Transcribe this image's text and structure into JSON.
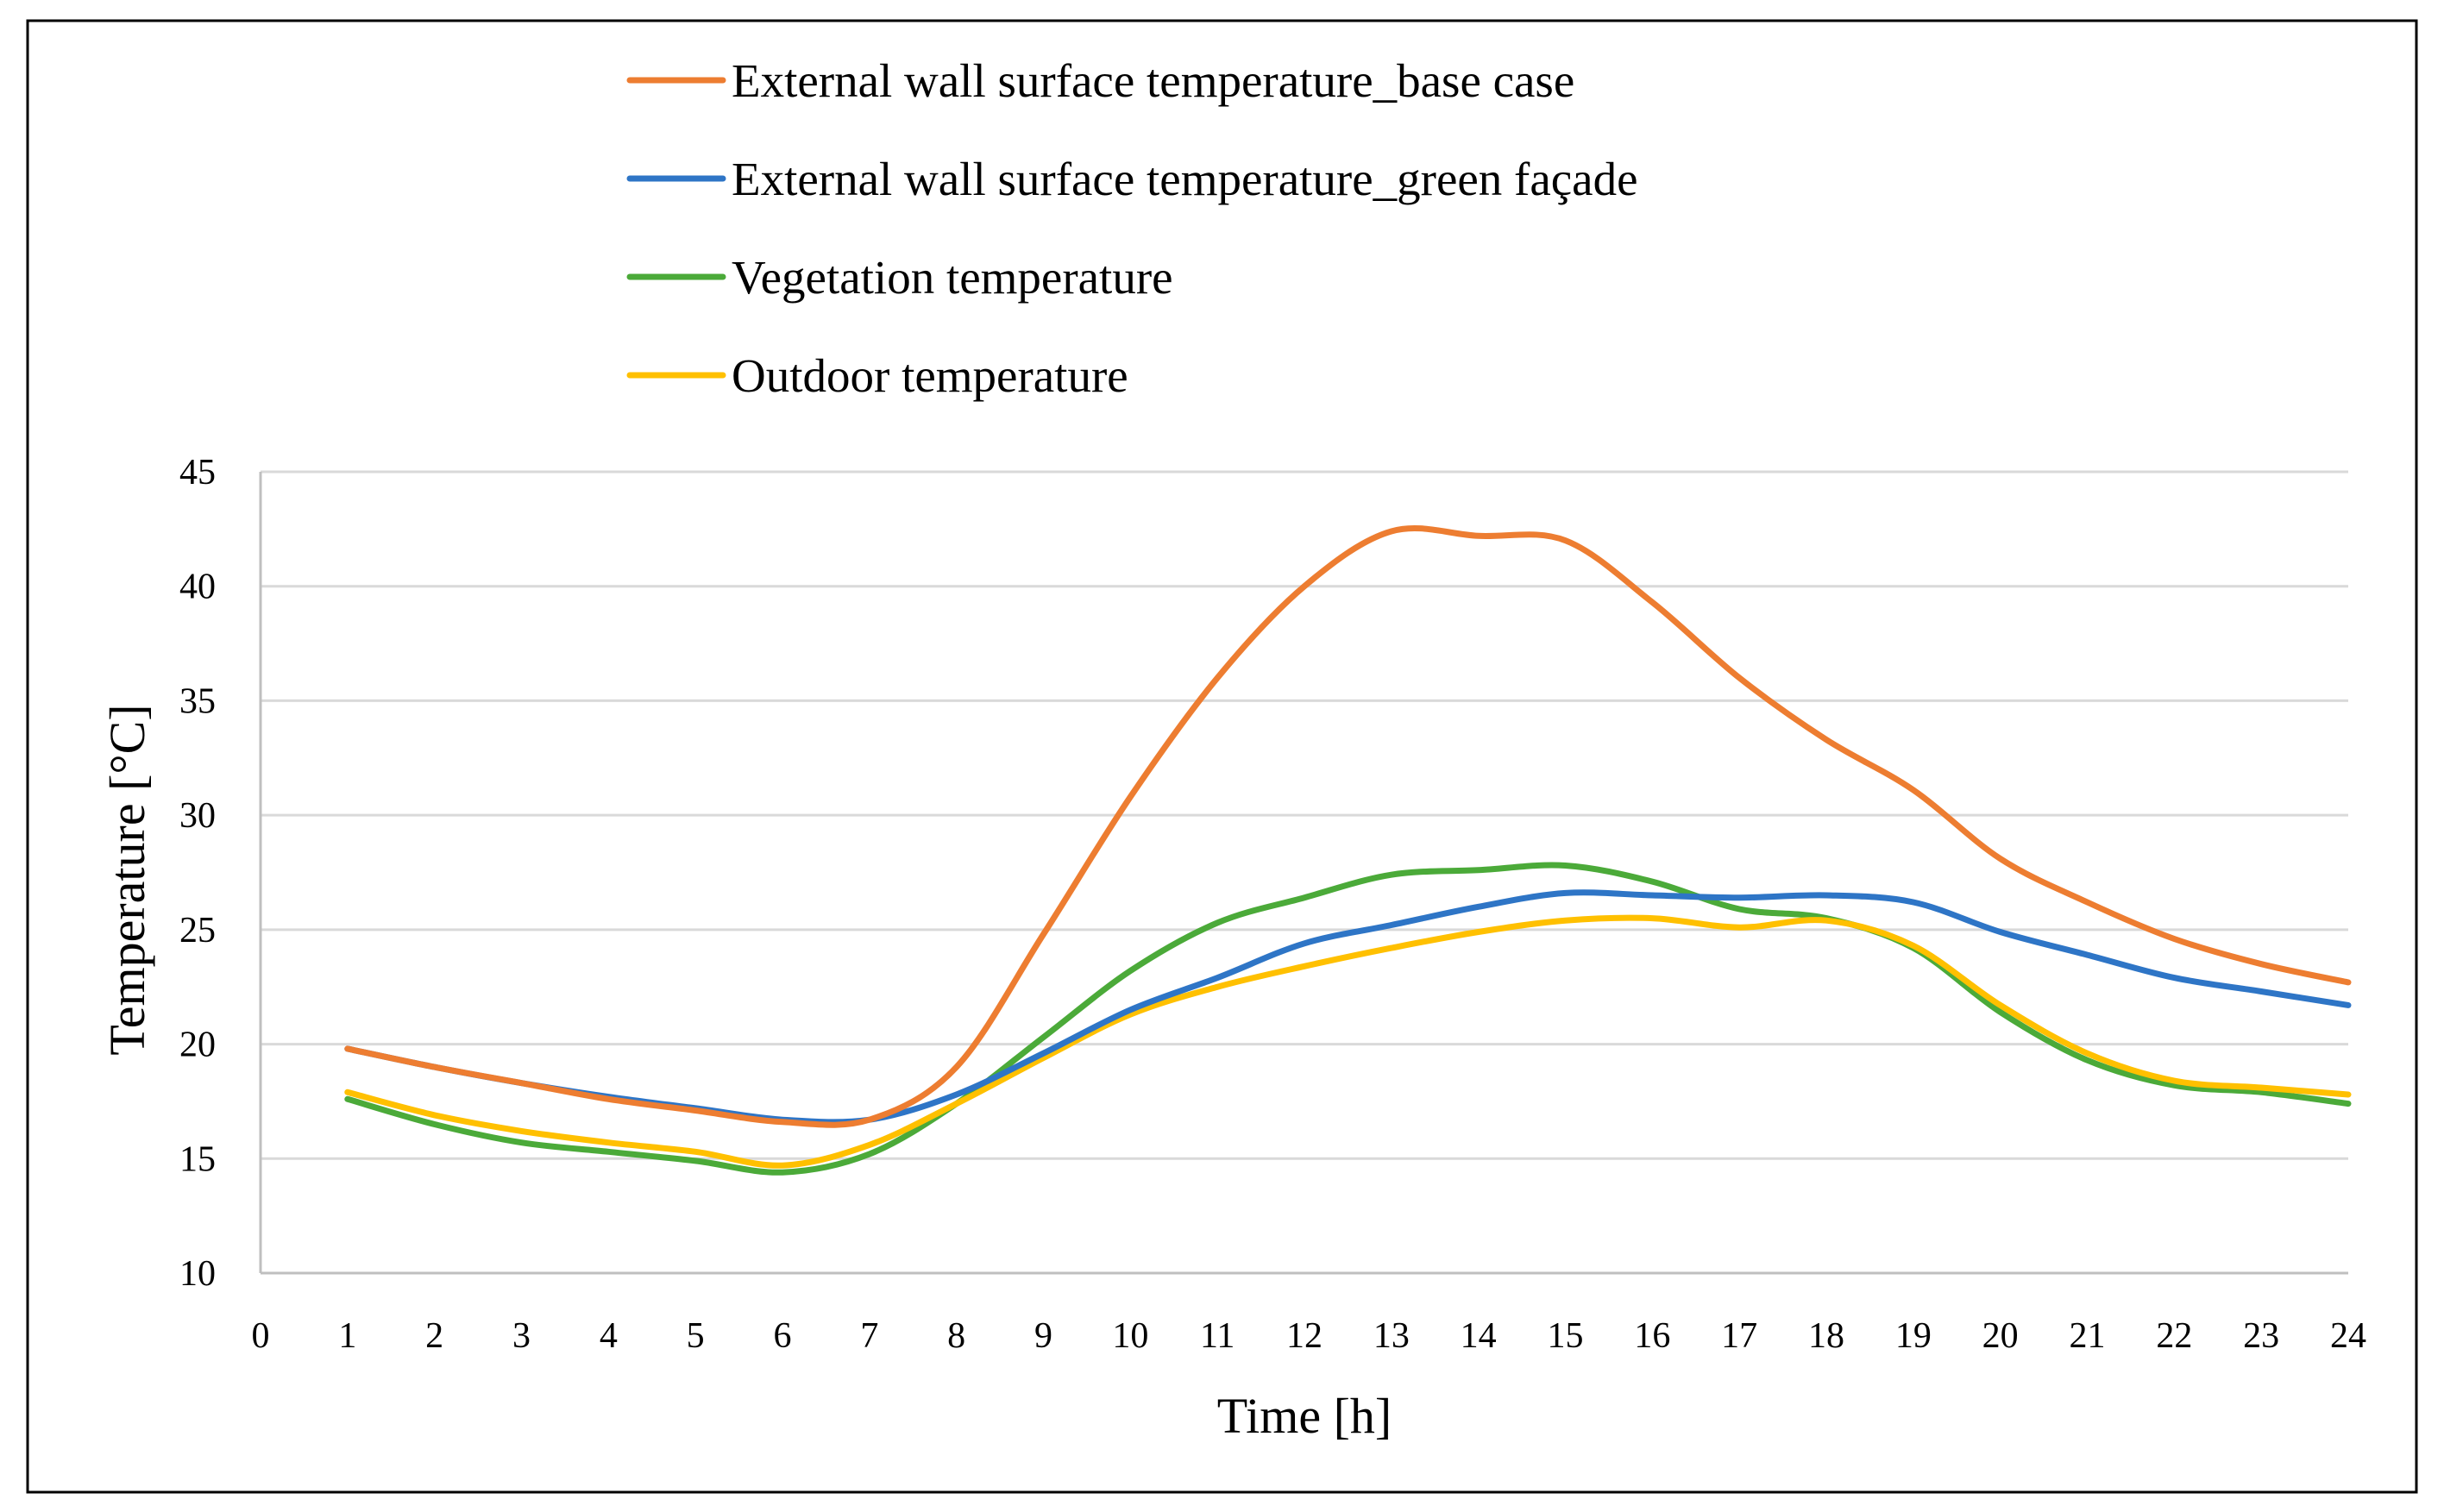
{
  "chart_data": {
    "type": "line",
    "title": "",
    "xlabel": "Time [h]",
    "ylabel": "Temperature [°C]",
    "xlim": [
      0,
      24
    ],
    "ylim": [
      10,
      45
    ],
    "x_ticks": [
      0,
      1,
      2,
      3,
      4,
      5,
      6,
      7,
      8,
      9,
      10,
      11,
      12,
      13,
      14,
      15,
      16,
      17,
      18,
      19,
      20,
      21,
      22,
      23,
      24
    ],
    "y_ticks": [
      10,
      15,
      20,
      25,
      30,
      35,
      40,
      45
    ],
    "grid": "horizontal",
    "legend_position": "top",
    "x": [
      1,
      2,
      3,
      4,
      5,
      6,
      7,
      8,
      9,
      10,
      11,
      12,
      13,
      14,
      15,
      16,
      17,
      18,
      19,
      20,
      21,
      22,
      23,
      24
    ],
    "series": [
      {
        "name": "External wall surface temperature_base case",
        "color": "#ED7D31",
        "values": [
          19.8,
          19.0,
          18.3,
          17.6,
          17.1,
          16.6,
          16.7,
          19.0,
          24.8,
          30.8,
          36.0,
          40.0,
          42.4,
          42.2,
          42.0,
          39.3,
          36.0,
          33.3,
          31.1,
          28.1,
          26.2,
          24.6,
          23.5,
          22.7
        ]
      },
      {
        "name": "External wall surface temperature_green façade",
        "color": "#2E75C6",
        "values": [
          19.8,
          19.0,
          18.3,
          17.7,
          17.2,
          16.7,
          16.7,
          17.8,
          19.6,
          21.5,
          22.9,
          24.4,
          25.2,
          26.0,
          26.6,
          26.5,
          26.4,
          26.5,
          26.2,
          24.9,
          23.9,
          22.9,
          22.3,
          21.7
        ]
      },
      {
        "name": "Vegetation temperature",
        "color": "#4BAA39",
        "values": [
          17.6,
          16.5,
          15.7,
          15.3,
          14.9,
          14.4,
          15.2,
          17.4,
          20.3,
          23.2,
          25.3,
          26.4,
          27.4,
          27.6,
          27.8,
          27.1,
          25.9,
          25.5,
          24.2,
          21.4,
          19.3,
          18.2,
          17.9,
          17.4
        ]
      },
      {
        "name": "Outdoor temperature",
        "color": "#FFC000",
        "values": [
          17.9,
          16.9,
          16.2,
          15.7,
          15.3,
          14.7,
          15.6,
          17.4,
          19.4,
          21.3,
          22.5,
          23.4,
          24.2,
          24.9,
          25.4,
          25.5,
          25.1,
          25.4,
          24.3,
          21.7,
          19.6,
          18.4,
          18.1,
          17.8
        ]
      }
    ]
  }
}
